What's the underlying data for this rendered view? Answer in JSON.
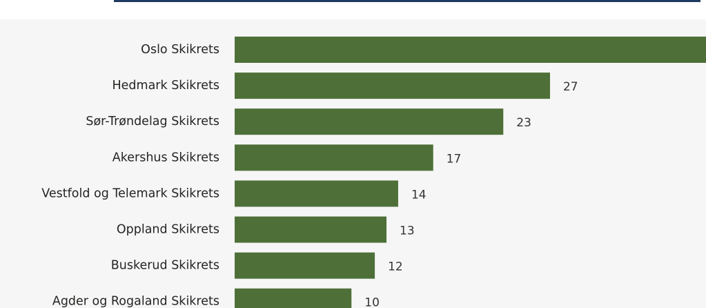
{
  "chart_data": {
    "type": "bar",
    "orientation": "horizontal",
    "categories": [
      "Oslo Skikrets",
      "Hedmark Skikrets",
      "Sør-Trøndelag Skikrets",
      "Akershus Skikrets",
      "Vestfold og Telemark Skikrets",
      "Oppland Skikrets",
      "Buskerud Skikrets",
      "Agder og Rogaland Skikrets"
    ],
    "values": [
      41,
      27,
      23,
      17,
      14,
      13,
      12,
      10
    ],
    "color": "#4e7038",
    "xlim": [
      0,
      40
    ]
  }
}
